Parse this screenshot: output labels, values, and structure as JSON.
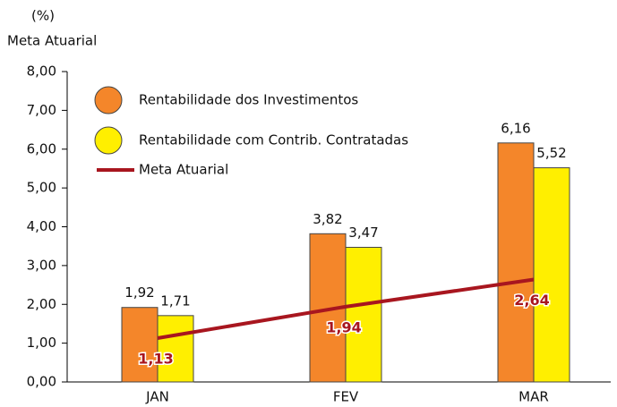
{
  "chart_data": {
    "type": "bar",
    "y_label_unit": "(%)",
    "y_label": "Meta Atuarial",
    "categories": [
      "JAN",
      "FEV",
      "MAR"
    ],
    "series": [
      {
        "name": "Rentabilidade dos Investimentos",
        "color": "#f4862a",
        "values": [
          1.92,
          3.82,
          6.16
        ],
        "value_labels": [
          "1,92",
          "3,82",
          "6,16"
        ]
      },
      {
        "name": "Rentabilidade com Contrib. Contratadas",
        "color": "#ffef00",
        "values": [
          1.71,
          3.47,
          5.52
        ],
        "value_labels": [
          "1,71",
          "3,47",
          "5,52"
        ]
      },
      {
        "name": "Meta Atuarial",
        "type": "line",
        "color": "#a8161f",
        "values": [
          1.13,
          1.94,
          2.64
        ],
        "value_labels": [
          "1,13",
          "1,94",
          "2,64"
        ]
      }
    ],
    "ylim": [
      0,
      8
    ],
    "yticks": [
      {
        "value": 0,
        "label": "0,00"
      },
      {
        "value": 1,
        "label": "1,00"
      },
      {
        "value": 2,
        "label": "2,00"
      },
      {
        "value": 3,
        "label": "3,00"
      },
      {
        "value": 4,
        "label": "4,00"
      },
      {
        "value": 5,
        "label": "5,00"
      },
      {
        "value": 6,
        "label": "6,00"
      },
      {
        "value": 7,
        "label": "7,00"
      },
      {
        "value": 8,
        "label": "8,00"
      }
    ],
    "legend": "upper left"
  }
}
